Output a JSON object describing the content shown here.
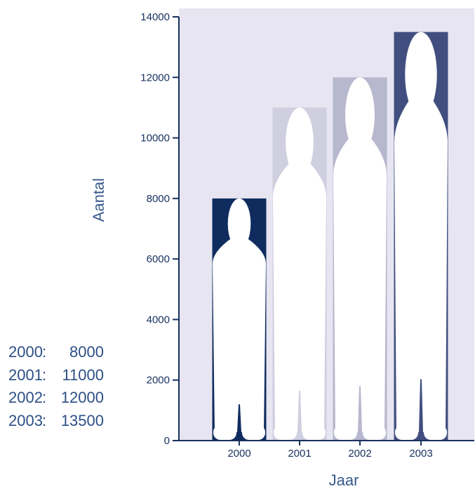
{
  "chart_data": {
    "type": "bar",
    "categories": [
      "2000",
      "2001",
      "2002",
      "2003"
    ],
    "values": [
      8000,
      11000,
      12000,
      13500
    ],
    "xlabel": "Jaar",
    "ylabel": "Aantal",
    "ylim": [
      0,
      14000
    ],
    "yticks": [
      "0",
      "2000",
      "4000",
      "6000",
      "8000",
      "10000",
      "12000",
      "14000"
    ],
    "grid": false,
    "bar_colors": [
      "#102c5f",
      "#cfcfe0",
      "#b7b7cd",
      "#414e7f"
    ],
    "plot_background": "#e6e5f1",
    "axis_color": "#17305e",
    "figure_color": "#ffffff",
    "bar_style": "human-silhouette"
  },
  "value_list": [
    {
      "year": "2000",
      "sep": ":",
      "value": "8000"
    },
    {
      "year": "2001",
      "sep": ":",
      "value": "11000"
    },
    {
      "year": "2002",
      "sep": ":",
      "value": "12000"
    },
    {
      "year": "2003",
      "sep": ":",
      "value": "13500"
    }
  ]
}
